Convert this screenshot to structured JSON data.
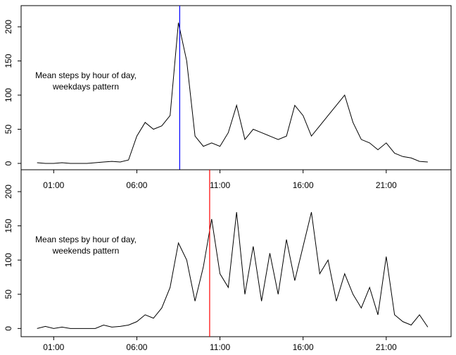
{
  "chart_data": [
    {
      "type": "line",
      "annotation": [
        "Mean steps by hour of day,",
        "weekdays pattern"
      ],
      "x": [
        0,
        0.5,
        1,
        1.5,
        2,
        2.5,
        3,
        3.5,
        4,
        4.5,
        5,
        5.5,
        6,
        6.5,
        7,
        7.5,
        8,
        8.5,
        9,
        9.5,
        10,
        10.5,
        11,
        11.5,
        12,
        12.5,
        13,
        13.5,
        14,
        14.5,
        15,
        15.5,
        16,
        16.5,
        17,
        17.5,
        18,
        18.5,
        19,
        19.5,
        20,
        20.5,
        21,
        21.5,
        22,
        22.5,
        23,
        23.5
      ],
      "series": [
        {
          "color": "#000000",
          "values": [
            1,
            0,
            0,
            1,
            0,
            0,
            0,
            1,
            2,
            3,
            2,
            5,
            40,
            60,
            50,
            55,
            70,
            206,
            150,
            40,
            25,
            30,
            25,
            45,
            85,
            35,
            50,
            45,
            40,
            35,
            40,
            85,
            70,
            40,
            55,
            70,
            85,
            100,
            60,
            35,
            30,
            20,
            30,
            15,
            10,
            8,
            3,
            2
          ]
        }
      ],
      "max_line": {
        "x": 8.58,
        "color": "#0000ff"
      },
      "xlim": [
        -0.96,
        24.9
      ],
      "ylim": [
        -9.3,
        231
      ],
      "xticks": [
        {
          "value": 1,
          "label": "01:00"
        },
        {
          "value": 6,
          "label": "06:00"
        },
        {
          "value": 11,
          "label": "11:00"
        },
        {
          "value": 16,
          "label": "16:00"
        },
        {
          "value": 21,
          "label": "21:00"
        }
      ],
      "yticks": [
        0,
        50,
        100,
        150,
        200
      ]
    },
    {
      "type": "line",
      "annotation": [
        "Mean steps by hour of day,",
        "weekends pattern"
      ],
      "x": [
        0,
        0.5,
        1,
        1.5,
        2,
        2.5,
        3,
        3.5,
        4,
        4.5,
        5,
        5.5,
        6,
        6.5,
        7,
        7.5,
        8,
        8.5,
        9,
        9.5,
        10,
        10.5,
        11,
        11.5,
        12,
        12.5,
        13,
        13.5,
        14,
        14.5,
        15,
        15.5,
        16,
        16.5,
        17,
        17.5,
        18,
        18.5,
        19,
        19.5,
        20,
        20.5,
        21,
        21.5,
        22,
        22.5,
        23,
        23.5
      ],
      "series": [
        {
          "color": "#000000",
          "values": [
            0,
            3,
            0,
            2,
            0,
            0,
            0,
            0,
            5,
            2,
            3,
            5,
            10,
            20,
            15,
            30,
            60,
            125,
            100,
            40,
            90,
            160,
            80,
            60,
            170,
            50,
            120,
            40,
            110,
            50,
            130,
            70,
            120,
            170,
            80,
            100,
            40,
            80,
            50,
            30,
            60,
            20,
            105,
            20,
            10,
            5,
            20,
            2
          ]
        }
      ],
      "max_line": {
        "x": 10.38,
        "color": "#ff0000"
      },
      "xlim": [
        -0.96,
        24.9
      ],
      "ylim": [
        -12,
        232
      ],
      "xticks": [
        {
          "value": 1,
          "label": "01:00"
        },
        {
          "value": 6,
          "label": "06:00"
        },
        {
          "value": 11,
          "label": "11:00"
        },
        {
          "value": 16,
          "label": "16:00"
        },
        {
          "value": 21,
          "label": "21:00"
        }
      ],
      "yticks": [
        0,
        50,
        100,
        150,
        200
      ]
    }
  ]
}
